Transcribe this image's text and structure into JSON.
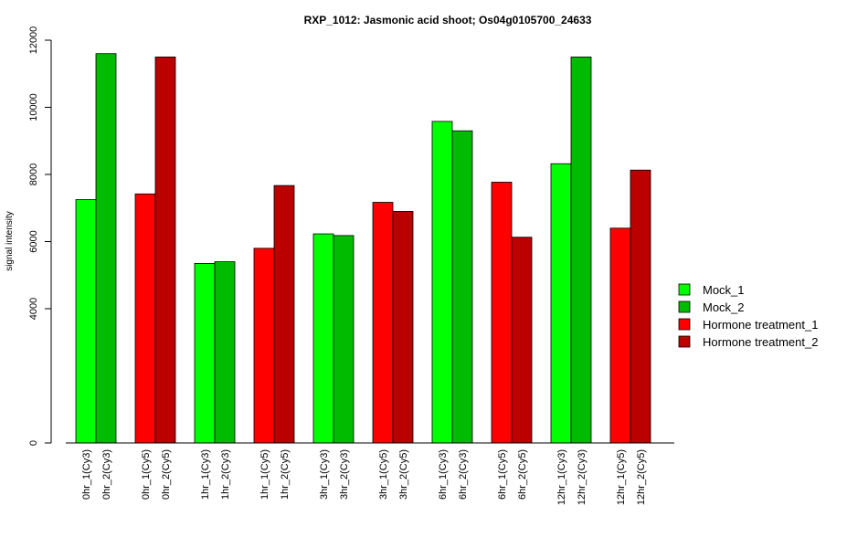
{
  "chart_data": {
    "type": "bar",
    "title": "RXP_1012: Jasmonic acid shoot; Os04g0105700_24633",
    "ylabel": "signal intensity",
    "xlabel": "",
    "ylim": [
      0,
      12000
    ],
    "y_ticks": [
      0,
      4000,
      6000,
      8000,
      10000,
      12000
    ],
    "grid": false,
    "legend_position": "right",
    "series": [
      {
        "name": "Mock_1",
        "color": "#00ff00"
      },
      {
        "name": "Mock_2",
        "color": "#00bb00"
      },
      {
        "name": "Hormone treatment_1",
        "color": "#ff0000"
      },
      {
        "name": "Hormone treatment_2",
        "color": "#bb0000"
      }
    ],
    "bars": [
      {
        "label": "0hr_1(Cy3)",
        "value": 7250,
        "series": 0
      },
      {
        "label": "0hr_2(Cy3)",
        "value": 11600,
        "series": 1
      },
      {
        "label": "0hr_1(Cy5)",
        "value": 7420,
        "series": 2
      },
      {
        "label": "0hr_2(Cy5)",
        "value": 11500,
        "series": 3
      },
      {
        "label": "1hr_1(Cy3)",
        "value": 5350,
        "series": 0
      },
      {
        "label": "1hr_2(Cy3)",
        "value": 5400,
        "series": 1
      },
      {
        "label": "1hr_1(Cy5)",
        "value": 5800,
        "series": 2
      },
      {
        "label": "1hr_2(Cy5)",
        "value": 7670,
        "series": 3
      },
      {
        "label": "3hr_1(Cy3)",
        "value": 6230,
        "series": 0
      },
      {
        "label": "3hr_2(Cy3)",
        "value": 6180,
        "series": 1
      },
      {
        "label": "3hr_1(Cy5)",
        "value": 7170,
        "series": 2
      },
      {
        "label": "3hr_2(Cy5)",
        "value": 6900,
        "series": 3
      },
      {
        "label": "6hr_1(Cy3)",
        "value": 9580,
        "series": 0
      },
      {
        "label": "6hr_2(Cy3)",
        "value": 9300,
        "series": 1
      },
      {
        "label": "6hr_1(Cy5)",
        "value": 7770,
        "series": 2
      },
      {
        "label": "6hr_2(Cy5)",
        "value": 6130,
        "series": 3
      },
      {
        "label": "12hr_1(Cy3)",
        "value": 8320,
        "series": 0
      },
      {
        "label": "12hr_2(Cy3)",
        "value": 11500,
        "series": 1
      },
      {
        "label": "12hr_1(Cy5)",
        "value": 6400,
        "series": 2
      },
      {
        "label": "12hr_2(Cy5)",
        "value": 8130,
        "series": 3
      }
    ]
  }
}
